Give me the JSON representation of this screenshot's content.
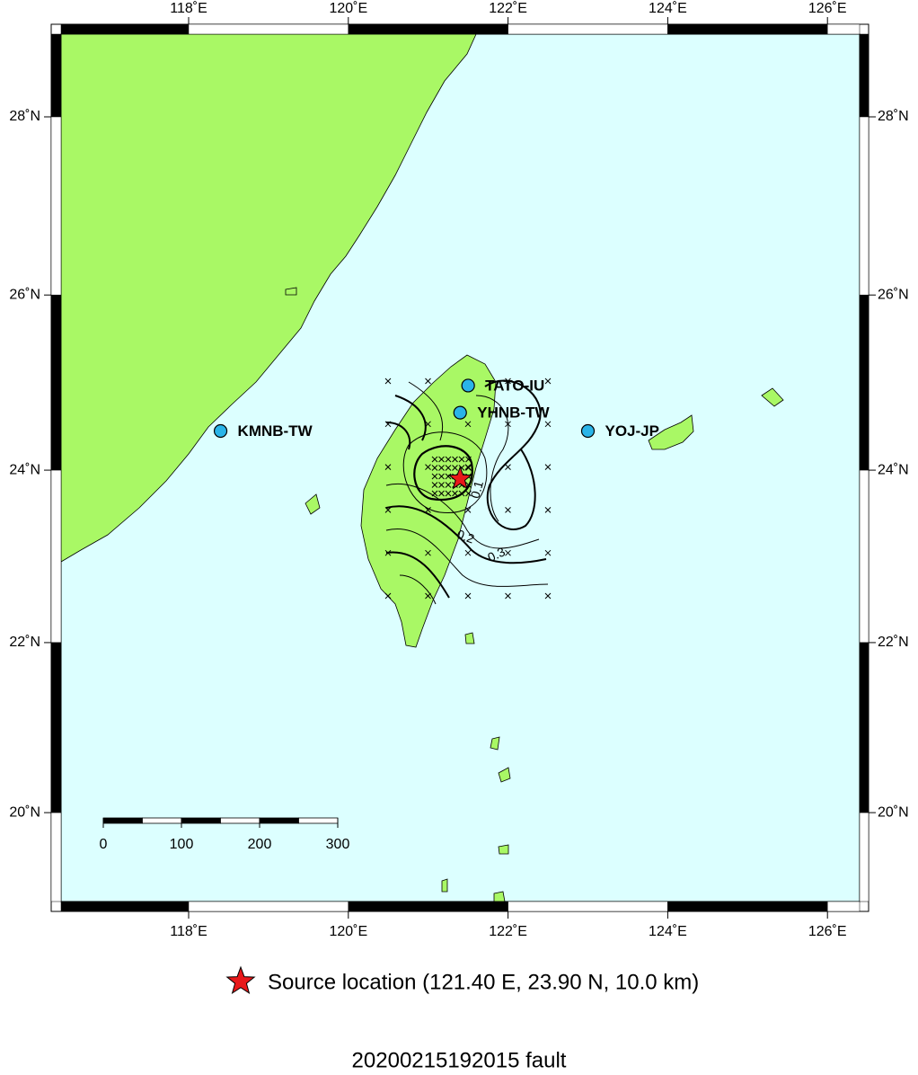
{
  "map": {
    "lon_ticks": [
      {
        "value": 118,
        "label": "118˚E"
      },
      {
        "value": 120,
        "label": "120˚E"
      },
      {
        "value": 122,
        "label": "122˚E"
      },
      {
        "value": 124,
        "label": "124˚E"
      },
      {
        "value": 126,
        "label": "126˚E"
      }
    ],
    "lat_ticks": [
      {
        "value": 28,
        "label": "28˚N"
      },
      {
        "value": 26,
        "label": "26˚N"
      },
      {
        "value": 24,
        "label": "24˚N"
      },
      {
        "value": 22,
        "label": "22˚N"
      },
      {
        "value": 20,
        "label": "20˚N"
      }
    ],
    "stations": [
      {
        "name": "KMNB-TW",
        "lon": 118.4,
        "lat": 24.45
      },
      {
        "name": "TATO-IU",
        "lon": 121.5,
        "lat": 24.97
      },
      {
        "name": "YHNB-TW",
        "lon": 121.4,
        "lat": 24.66
      },
      {
        "name": "YOJ-JP",
        "lon": 123.0,
        "lat": 24.45
      }
    ],
    "source": {
      "lon": 121.4,
      "lat": 23.9
    },
    "contour_labels": [
      "0.1",
      "0.2",
      "0.3"
    ],
    "scale_bar": {
      "ticks": [
        0,
        100,
        200,
        300
      ]
    },
    "legend": "Source location (121.40 E, 23.90 N, 10.0 km)",
    "title": "20200215192015 fault"
  }
}
